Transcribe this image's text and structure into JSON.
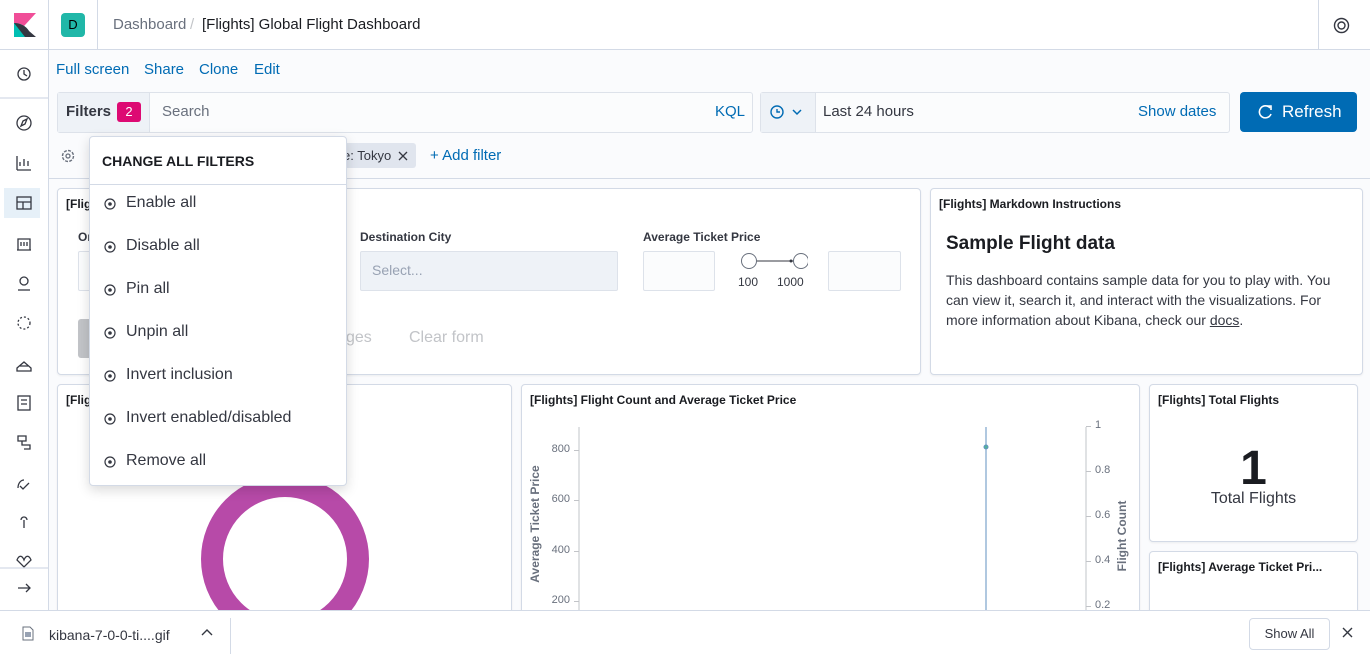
{
  "header": {
    "avatar": "D",
    "breadcrumb_root": "Dashboard",
    "separator": "/",
    "title": "[Flights] Global Flight Dashboard"
  },
  "top_nav": [
    "Full screen",
    "Share",
    "Clone",
    "Edit"
  ],
  "query_bar": {
    "filters_label": "Filters",
    "filter_count": 2,
    "search_placeholder": "Search",
    "language": "KQL",
    "time_range": "Last 24 hours",
    "show_dates": "Show dates",
    "refresh": "Refresh"
  },
  "filter_bar": {
    "pill": "e: Tokyo",
    "add_filter": "+ Add filter"
  },
  "popover": {
    "title": "CHANGE ALL FILTERS",
    "items": [
      "Enable all",
      "Disable all",
      "Pin all",
      "Unpin all",
      "Invert inclusion",
      "Invert enabled/disabled",
      "Remove all"
    ]
  },
  "controls_panel": {
    "title": "[Flig",
    "origin_label": "Or",
    "destination_label": "Destination City",
    "destination_placeholder": "Select...",
    "price_label": "Average Ticket Price",
    "range_min": 100,
    "range_max": 1000,
    "apply": "ges",
    "clear": "Clear form"
  },
  "markdown_panel": {
    "title": "[Flights] Markdown Instructions",
    "heading": "Sample Flight data",
    "body": "This dashboard contains sample data for you to play with. You can view it, search it, and interact with the visualizations. For more information about Kibana, check our ",
    "link": "docs",
    "end": "."
  },
  "donut_panel": {
    "title": "[Flig"
  },
  "chart_panel": {
    "title": "[Flights] Flight Count and Average Ticket Price",
    "y_label": "Average Ticket Price",
    "y2_label": "Flight Count",
    "yticks": [
      800,
      600,
      400,
      200
    ],
    "y2ticks": [
      1,
      0.8,
      0.6,
      0.4,
      0.2
    ]
  },
  "total_panel": {
    "title": "[Flights] Total Flights",
    "value": 1,
    "label": "Total Flights"
  },
  "avg_panel": {
    "title": "[Flights] Average Ticket Pri..."
  },
  "download_bar": {
    "file": "kibana-7-0-0-ti....gif",
    "show_all": "Show All"
  }
}
